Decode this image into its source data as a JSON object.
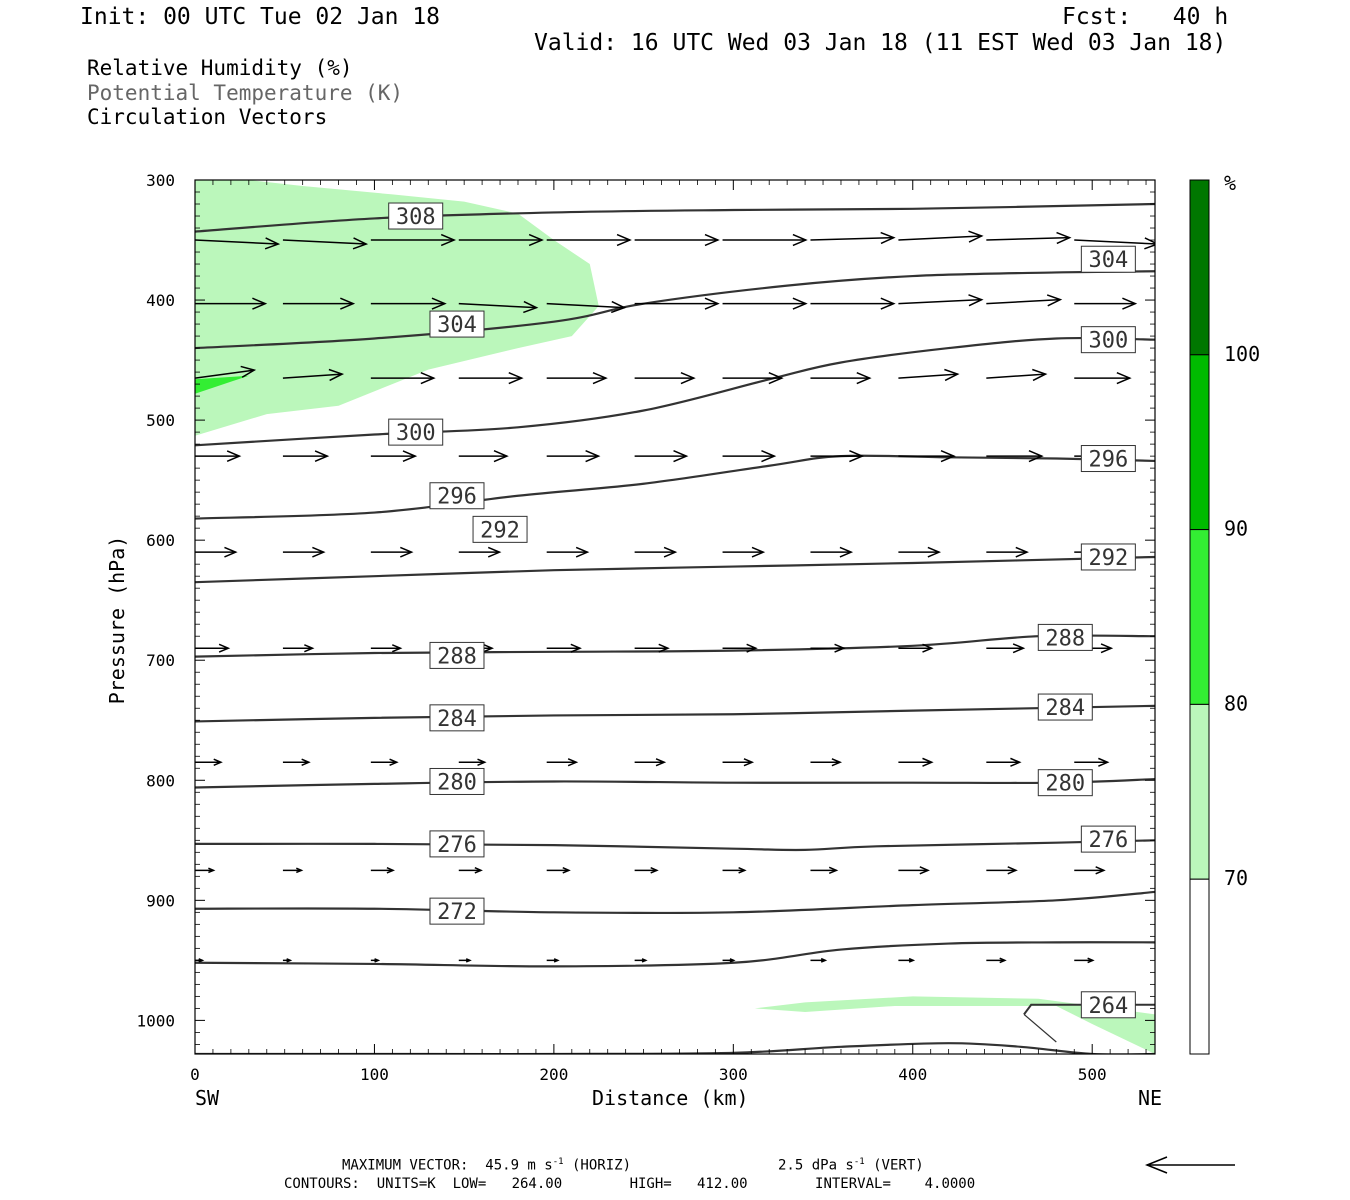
{
  "header": {
    "init": "Init: 00 UTC Tue 02 Jan 18",
    "fcst": "Fcst:   40 h",
    "valid": "Valid: 16 UTC Wed 03 Jan 18 (11 EST Wed 03 Jan 18)"
  },
  "legend_lines": {
    "rh": "Relative Humidity (%)",
    "theta": "Potential Temperature (K)",
    "vectors": "Circulation Vectors"
  },
  "footer": {
    "max_vector": "MAXIMUM VECTOR:  45.9 m s",
    "max_vector_exp": "-1",
    "horiz": " (HORIZ)",
    "vert_val": "2.5 dPa s",
    "vert_exp": "-1",
    "vert": " (VERT)",
    "contours": "CONTOURS:  UNITS=K  LOW=   264.00        HIGH=   412.00        INTERVAL=    4.0000"
  },
  "colors": {
    "rh70": "#bbf7bb",
    "rh80": "#33ee33",
    "rh90": "#00bb00",
    "rh100": "#007700",
    "contour": "#333333"
  },
  "chart_data": {
    "type": "cross-section",
    "xlabel": "Distance (km)",
    "ylabel": "Pressure (hPa)",
    "xlim": [
      0,
      535
    ],
    "ylim": [
      1028,
      300
    ],
    "x_ticks": [
      "0",
      "100",
      "200",
      "300",
      "400",
      "500"
    ],
    "y_ticks": [
      "300",
      "400",
      "500",
      "600",
      "700",
      "800",
      "900",
      "1000"
    ],
    "x_end_labels": {
      "left": "SW",
      "right": "NE"
    },
    "colorbar": {
      "unit": "%",
      "levels": [
        "70",
        "80",
        "90",
        "100"
      ]
    },
    "contour_labels": [
      "308",
      "304",
      "304",
      "300",
      "300",
      "296",
      "296",
      "292",
      "292",
      "288",
      "288",
      "284",
      "284",
      "280",
      "280",
      "276",
      "276",
      "272",
      "264"
    ],
    "contours": [
      {
        "level": 308,
        "points": [
          [
            0,
            343
          ],
          [
            100,
            332
          ],
          [
            200,
            327
          ],
          [
            300,
            325
          ],
          [
            400,
            324
          ],
          [
            535,
            320
          ]
        ]
      },
      {
        "level": 304,
        "points": [
          [
            0,
            440
          ],
          [
            100,
            432
          ],
          [
            200,
            418
          ],
          [
            250,
            403
          ],
          [
            330,
            388
          ],
          [
            400,
            380
          ],
          [
            480,
            377
          ],
          [
            535,
            376
          ]
        ]
      },
      {
        "level": 300,
        "points": [
          [
            0,
            521
          ],
          [
            100,
            512
          ],
          [
            180,
            506
          ],
          [
            250,
            492
          ],
          [
            320,
            466
          ],
          [
            360,
            452
          ],
          [
            420,
            440
          ],
          [
            480,
            432
          ],
          [
            535,
            433
          ]
        ]
      },
      {
        "level": 296,
        "points": [
          [
            0,
            582
          ],
          [
            100,
            577
          ],
          [
            180,
            563
          ],
          [
            250,
            553
          ],
          [
            320,
            538
          ],
          [
            360,
            530
          ],
          [
            420,
            531
          ],
          [
            480,
            532
          ],
          [
            535,
            534
          ]
        ]
      },
      {
        "level": 292,
        "points": [
          [
            0,
            635
          ],
          [
            100,
            630
          ],
          [
            200,
            625
          ],
          [
            300,
            622
          ],
          [
            400,
            619
          ],
          [
            535,
            614
          ]
        ]
      },
      {
        "level": 288,
        "points": [
          [
            0,
            697
          ],
          [
            100,
            694
          ],
          [
            200,
            693
          ],
          [
            300,
            692
          ],
          [
            400,
            688
          ],
          [
            470,
            680
          ],
          [
            535,
            680
          ]
        ]
      },
      {
        "level": 284,
        "points": [
          [
            0,
            751
          ],
          [
            100,
            748
          ],
          [
            200,
            746
          ],
          [
            300,
            745
          ],
          [
            400,
            742
          ],
          [
            535,
            738
          ]
        ]
      },
      {
        "level": 280,
        "points": [
          [
            0,
            806
          ],
          [
            100,
            803
          ],
          [
            200,
            801
          ],
          [
            300,
            802
          ],
          [
            400,
            802
          ],
          [
            480,
            802
          ],
          [
            535,
            799
          ]
        ]
      },
      {
        "level": 276,
        "points": [
          [
            0,
            853
          ],
          [
            100,
            853
          ],
          [
            200,
            854
          ],
          [
            300,
            857
          ],
          [
            340,
            858
          ],
          [
            380,
            855
          ],
          [
            480,
            852
          ],
          [
            535,
            850
          ]
        ]
      },
      {
        "level": 272,
        "points": [
          [
            0,
            907
          ],
          [
            100,
            907
          ],
          [
            200,
            910
          ],
          [
            300,
            910
          ],
          [
            400,
            904
          ],
          [
            480,
            900
          ],
          [
            535,
            893
          ]
        ]
      },
      {
        "level": 268,
        "points": [
          [
            0,
            952
          ],
          [
            100,
            953
          ],
          [
            200,
            955
          ],
          [
            300,
            952
          ],
          [
            360,
            941
          ],
          [
            420,
            936
          ],
          [
            480,
            935
          ],
          [
            535,
            935
          ]
        ]
      },
      {
        "level": 264,
        "points": [
          [
            0,
            1028
          ],
          [
            100,
            1028
          ],
          [
            200,
            1028
          ],
          [
            300,
            1027
          ],
          [
            360,
            1022
          ],
          [
            420,
            1019
          ],
          [
            460,
            1022
          ],
          [
            500,
            1028
          ],
          [
            535,
            1028
          ]
        ]
      }
    ],
    "rh_regions": [
      {
        "level": 70,
        "points": [
          [
            0,
            300
          ],
          [
            30,
            300
          ],
          [
            60,
            305
          ],
          [
            110,
            312
          ],
          [
            150,
            318
          ],
          [
            180,
            328
          ],
          [
            200,
            350
          ],
          [
            220,
            370
          ],
          [
            225,
            405
          ],
          [
            210,
            430
          ],
          [
            180,
            440
          ],
          [
            130,
            458
          ],
          [
            80,
            488
          ],
          [
            40,
            495
          ],
          [
            0,
            513
          ]
        ]
      },
      {
        "level": 80,
        "points": [
          [
            0,
            466
          ],
          [
            30,
            463
          ],
          [
            0,
            478
          ]
        ]
      },
      {
        "level": 70,
        "points": [
          [
            312,
            990
          ],
          [
            340,
            993
          ],
          [
            390,
            988
          ],
          [
            480,
            988
          ],
          [
            500,
            1003
          ],
          [
            535,
            1028
          ],
          [
            535,
            995
          ],
          [
            470,
            982
          ],
          [
            400,
            980
          ],
          [
            340,
            985
          ]
        ]
      }
    ],
    "vectors": [
      {
        "p": 350,
        "x": [
          0,
          49,
          98,
          147,
          196,
          245,
          294,
          343,
          392,
          441,
          490
        ],
        "u": [
          45,
          45,
          45,
          45,
          45,
          45,
          45,
          45,
          45,
          45,
          45
        ],
        "w": [
          -0.5,
          -0.5,
          0,
          0,
          0,
          0,
          0,
          0.3,
          0.5,
          0.3,
          -0.5
        ]
      },
      {
        "p": 403,
        "x": [
          0,
          49,
          98,
          147,
          196,
          245,
          294,
          343,
          392,
          441,
          490
        ],
        "u": [
          38,
          38,
          40,
          42,
          42,
          45,
          45,
          45,
          45,
          40,
          33
        ],
        "w": [
          0,
          0,
          0,
          -0.5,
          -0.5,
          0,
          0,
          0,
          0.5,
          0.5,
          0
        ]
      },
      {
        "p": 465,
        "x": [
          0,
          49,
          98,
          147,
          196,
          245,
          294,
          343,
          392,
          441,
          490
        ],
        "u": [
          32,
          32,
          34,
          34,
          32,
          32,
          32,
          32,
          32,
          32,
          30
        ],
        "w": [
          1,
          0.5,
          0,
          0,
          0,
          0,
          0,
          0,
          0.5,
          0.5,
          0
        ]
      },
      {
        "p": 530,
        "x": [
          0,
          49,
          98,
          147,
          196,
          245,
          294,
          343,
          392,
          441,
          490
        ],
        "u": [
          24,
          24,
          24,
          26,
          28,
          28,
          28,
          28,
          30,
          30,
          30
        ],
        "w": [
          0,
          0,
          0,
          0,
          0,
          0,
          0,
          0,
          0,
          0,
          0
        ]
      },
      {
        "p": 610,
        "x": [
          0,
          49,
          98,
          147,
          196,
          245,
          294,
          343,
          392,
          441,
          490
        ],
        "u": [
          22,
          22,
          22,
          22,
          22,
          22,
          22,
          22,
          22,
          22,
          22
        ],
        "w": [
          0,
          0,
          0,
          0,
          0,
          0,
          0,
          0,
          0,
          0,
          0
        ]
      },
      {
        "p": 690,
        "x": [
          0,
          49,
          98,
          147,
          196,
          245,
          294,
          343,
          392,
          441,
          490
        ],
        "u": [
          18,
          16,
          16,
          18,
          18,
          18,
          18,
          18,
          18,
          20,
          20
        ],
        "w": [
          0,
          0,
          0,
          0,
          0,
          0,
          0,
          0,
          0,
          0,
          0
        ]
      },
      {
        "p": 785,
        "x": [
          0,
          49,
          98,
          147,
          196,
          245,
          294,
          343,
          392,
          441,
          490
        ],
        "u": [
          14,
          14,
          14,
          14,
          16,
          16,
          16,
          16,
          18,
          18,
          18
        ],
        "w": [
          0,
          0,
          0,
          0,
          0,
          0,
          0,
          0,
          0,
          0,
          0
        ]
      },
      {
        "p": 875,
        "x": [
          0,
          49,
          98,
          147,
          196,
          245,
          294,
          343,
          392,
          441,
          490
        ],
        "u": [
          10,
          10,
          12,
          12,
          12,
          12,
          12,
          14,
          16,
          16,
          16
        ],
        "w": [
          0,
          0,
          0,
          0,
          0,
          0,
          0,
          0,
          0,
          0,
          0
        ]
      },
      {
        "p": 950,
        "x": [
          0,
          49,
          98,
          147,
          196,
          245,
          294,
          343,
          392,
          441,
          490
        ],
        "u": [
          4,
          4,
          4,
          6,
          6,
          6,
          6,
          8,
          8,
          10,
          10
        ],
        "w": [
          0,
          0,
          0,
          0,
          0,
          0,
          0,
          0,
          0,
          0,
          0
        ]
      }
    ]
  }
}
